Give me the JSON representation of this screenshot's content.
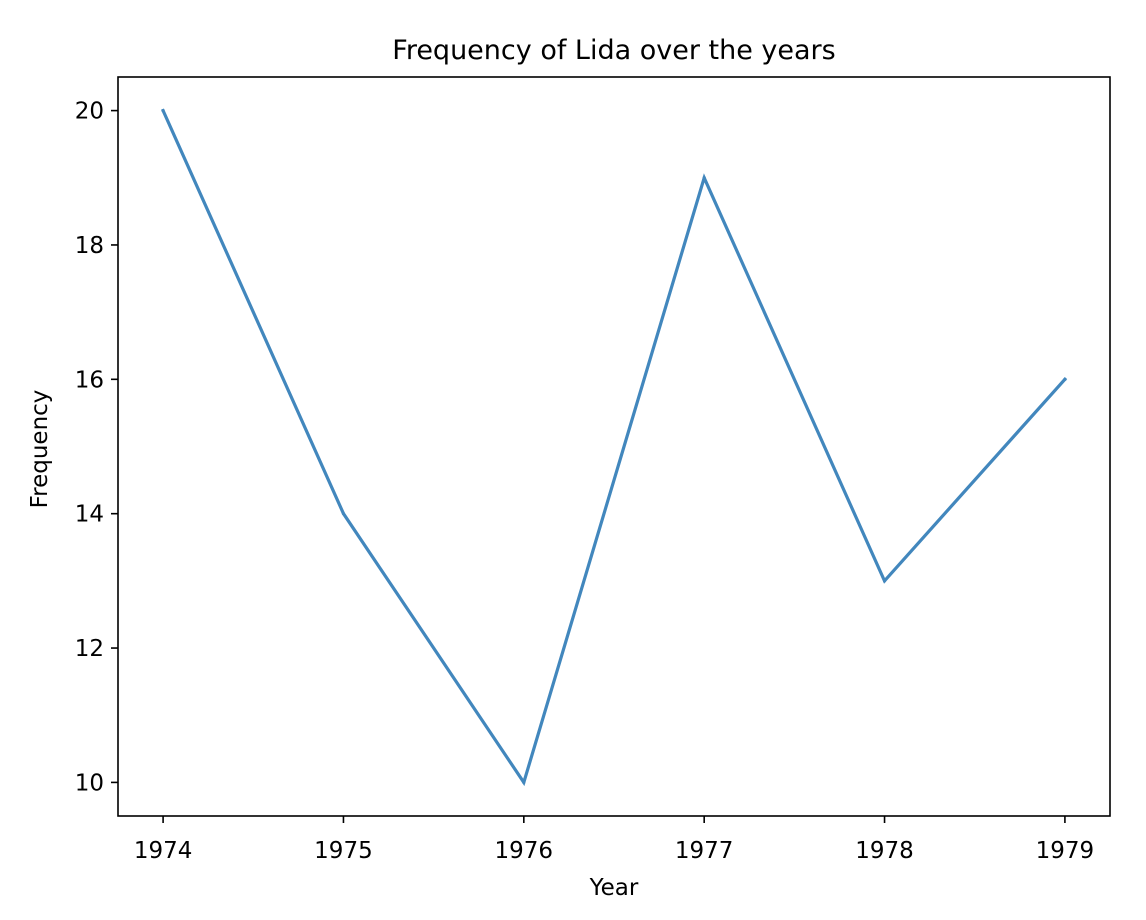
{
  "chart_data": {
    "type": "line",
    "title": "Frequency of Lida over the years",
    "xlabel": "Year",
    "ylabel": "Frequency",
    "x": [
      1974,
      1975,
      1976,
      1977,
      1978,
      1979
    ],
    "series": [
      {
        "values": [
          20,
          14,
          10,
          19,
          13,
          16
        ],
        "color": "#4287bd"
      }
    ],
    "xlim": [
      1973.75,
      1979.25
    ],
    "ylim": [
      9.5,
      20.5
    ],
    "xticks": [
      1974,
      1975,
      1976,
      1977,
      1978,
      1979
    ],
    "yticks": [
      10,
      12,
      14,
      16,
      18,
      20
    ],
    "grid": false,
    "legend": "none"
  }
}
